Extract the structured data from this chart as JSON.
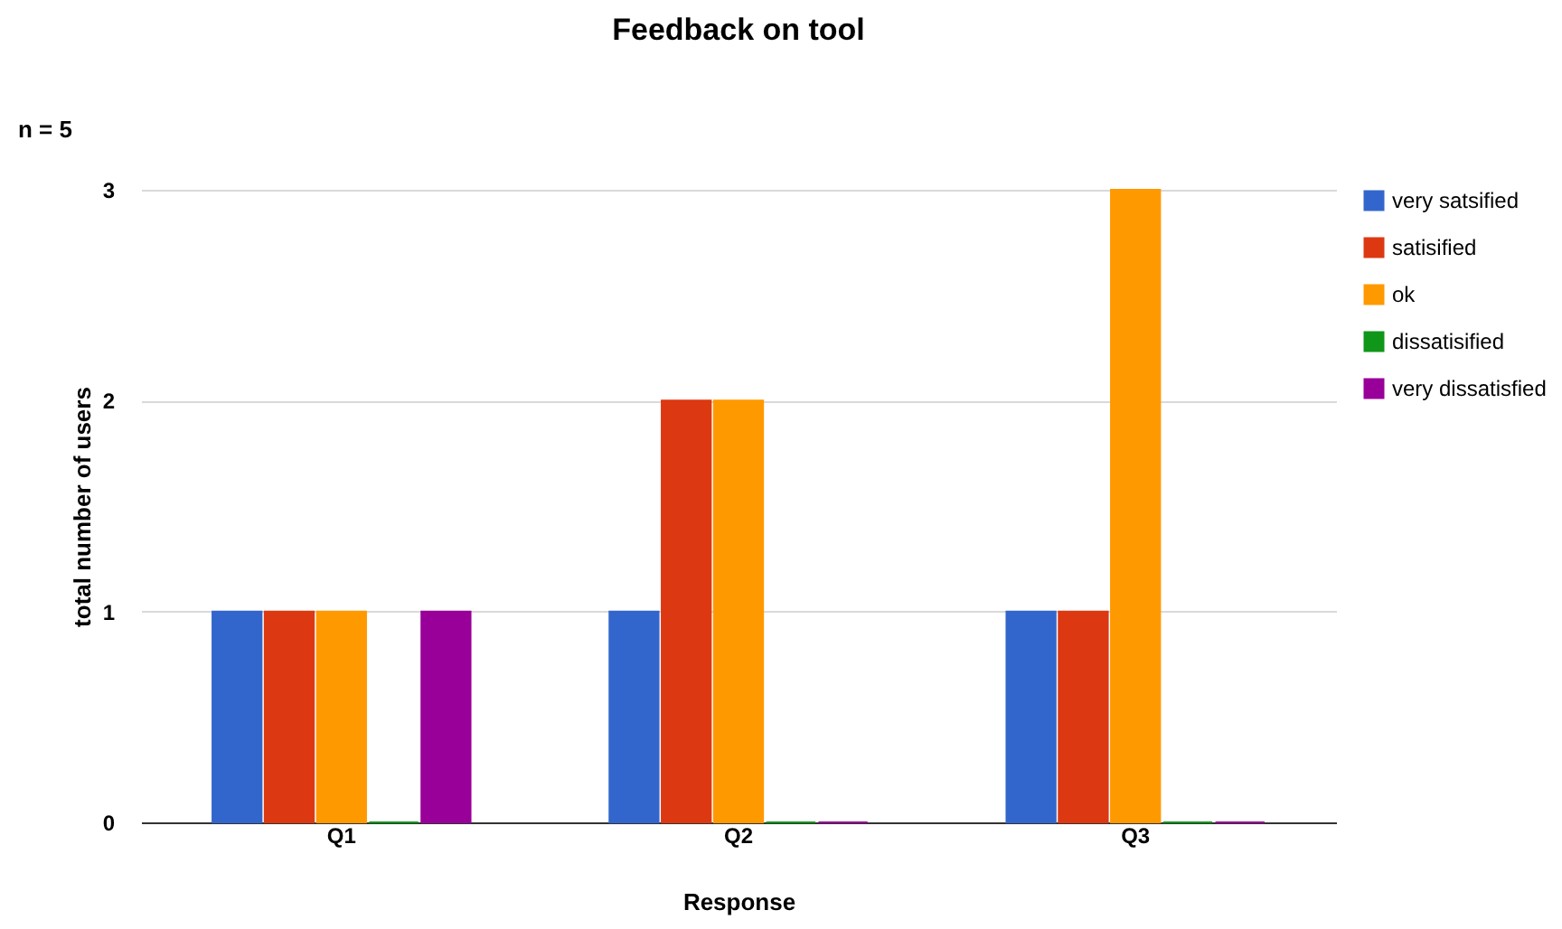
{
  "chart_data": {
    "type": "bar",
    "title": "Feedback on tool",
    "xlabel": "Response",
    "ylabel": "total number of users",
    "annotations": [
      "n = 5"
    ],
    "categories": [
      "Q1",
      "Q2",
      "Q3"
    ],
    "series": [
      {
        "name": "very satsified",
        "color": "#3366cc",
        "values": [
          1,
          1,
          1
        ]
      },
      {
        "name": "satisified",
        "color": "#dc3912",
        "values": [
          1,
          2,
          1
        ]
      },
      {
        "name": "ok",
        "color": "#ff9900",
        "values": [
          1,
          2,
          3
        ]
      },
      {
        "name": "dissatisified",
        "color": "#109618",
        "values": [
          0,
          0,
          0
        ]
      },
      {
        "name": "very dissatisfied",
        "color": "#990099",
        "values": [
          1,
          0,
          0
        ]
      }
    ],
    "ylim": [
      0,
      3
    ],
    "yticks": [
      0,
      1,
      2,
      3
    ],
    "grid": "y",
    "legend": "right"
  }
}
